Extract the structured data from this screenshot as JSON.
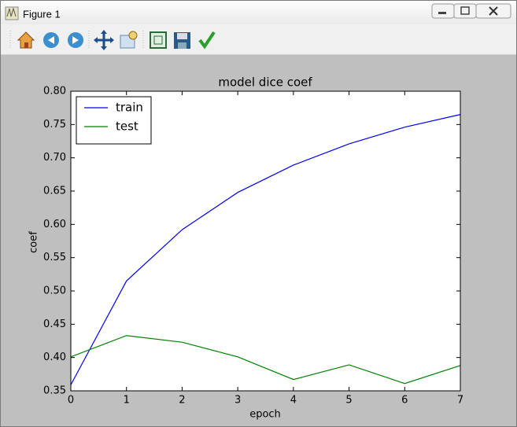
{
  "window": {
    "title": "Figure 1"
  },
  "chart_data": {
    "type": "line",
    "title": "model dice coef",
    "xlabel": "epoch",
    "ylabel": "coef",
    "x": [
      0,
      1,
      2,
      3,
      4,
      5,
      6,
      7
    ],
    "series": [
      {
        "name": "train",
        "color": "#0000ff",
        "values": [
          0.359,
          0.515,
          0.592,
          0.648,
          0.689,
          0.721,
          0.746,
          0.765
        ]
      },
      {
        "name": "test",
        "color": "#008000",
        "values": [
          0.401,
          0.433,
          0.423,
          0.401,
          0.367,
          0.389,
          0.361,
          0.388
        ]
      }
    ],
    "xlim": [
      0,
      7
    ],
    "ylim": [
      0.35,
      0.8
    ],
    "xticks": [
      0,
      1,
      2,
      3,
      4,
      5,
      6,
      7
    ],
    "yticks": [
      0.35,
      {
        "value": 0.4,
        "label": "0.40"
      },
      0.45,
      {
        "value": 0.5,
        "label": "0.50"
      },
      0.55,
      {
        "value": 0.6,
        "label": "0.60"
      },
      0.65,
      {
        "value": 0.7,
        "label": "0.70"
      },
      0.75,
      {
        "value": 0.8,
        "label": "0.80"
      }
    ],
    "grid": false,
    "legend": "upper left"
  }
}
